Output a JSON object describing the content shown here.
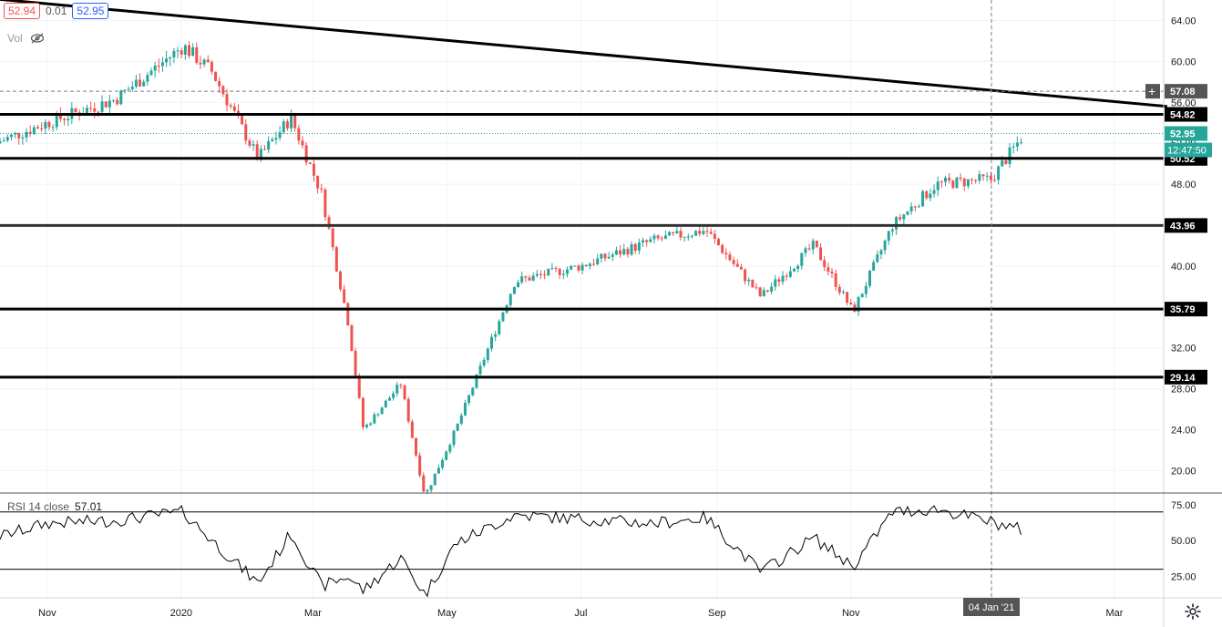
{
  "header": {
    "bid": "52.94",
    "spread": "0.01",
    "ask": "52.95",
    "vol_label": "Vol",
    "vol_icon": "eye-crossed-icon"
  },
  "rsi": {
    "label": "RSI 14 close",
    "value": "57.01",
    "ticks": [
      "75.00",
      "50.00",
      "25.00"
    ]
  },
  "settings_icon": "gear-icon",
  "colors": {
    "up": "#26a69a",
    "down": "#ef5350",
    "line": "#000000",
    "grid": "#f0f3fa",
    "accent": "#26a69a"
  },
  "chart_data": {
    "type": "candlestick",
    "price_axis_ticks": [
      "64.00",
      "60.00",
      "56.00",
      "52.00",
      "48.00",
      "44.00",
      "40.00",
      "36.00",
      "32.00",
      "28.00",
      "24.00",
      "20.00"
    ],
    "time_axis_ticks": [
      "Nov",
      "2020",
      "Mar",
      "May",
      "Jul",
      "Sep",
      "Nov",
      "04 Jan '21",
      "Mar"
    ],
    "crosshair": {
      "price": "57.08",
      "date": "04 Jan '21"
    },
    "current_price": {
      "price": "52.95",
      "countdown": "12:47:50"
    },
    "horizontal_levels": [
      54.82,
      50.52,
      43.96,
      35.79,
      29.14
    ],
    "level_labels": [
      "54.82",
      "50.52",
      "43.96",
      "35.79",
      "29.14"
    ],
    "trendline": {
      "from": {
        "date": "2019-09-18",
        "price": 66.5
      },
      "to": {
        "date": "2021-03-25",
        "price": 55.6
      }
    },
    "ylim": [
      17.9,
      66.0
    ],
    "rsi_levels": [
      70,
      30
    ],
    "rsi_range": [
      10,
      80
    ],
    "series": [
      {
        "x": [
          "2019-10-08",
          "2019-11-01",
          "2019-12-02",
          "2020-01-02",
          "2020-01-15",
          "2020-02-05",
          "2020-02-20",
          "2020-03-05",
          "2020-03-17",
          "2020-03-24",
          "2020-04-10",
          "2020-04-21",
          "2020-05-05",
          "2020-06-01",
          "2020-07-01",
          "2020-08-03",
          "2020-08-27",
          "2020-09-21",
          "2020-10-15",
          "2020-11-02",
          "2020-11-20",
          "2020-12-10",
          "2021-01-04",
          "2021-01-19"
        ],
        "close": [
          52.0,
          54.0,
          56.3,
          61.5,
          59.0,
          50.5,
          54.5,
          47.0,
          34.5,
          24.0,
          28.5,
          17.5,
          24.0,
          38.5,
          40.0,
          42.5,
          43.5,
          37.0,
          42.0,
          35.5,
          44.0,
          48.0,
          48.5,
          52.95
        ],
        "rsi": [
          52,
          62,
          64,
          70,
          50,
          20,
          55,
          18,
          25,
          15,
          38,
          12,
          48,
          68,
          65,
          62,
          66,
          28,
          52,
          32,
          70,
          72,
          63,
          57
        ]
      }
    ]
  }
}
